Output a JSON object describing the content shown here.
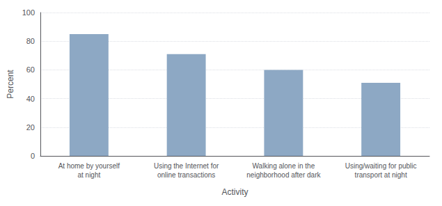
{
  "chart_data": {
    "type": "bar",
    "categories": [
      "At home by yourself\nat night",
      "Using the Internet for\nonline transactions",
      "Walking alone in the\nneighborhood after dark",
      "Using/waiting for public\ntransport at night"
    ],
    "values": [
      85,
      71,
      60,
      51
    ],
    "color": "#8da8c4",
    "xlabel": "Activity",
    "ylabel": "Percent",
    "ylim": [
      0,
      100
    ],
    "yticks": [
      0,
      20,
      40,
      60,
      80,
      100
    ],
    "grid": true
  }
}
